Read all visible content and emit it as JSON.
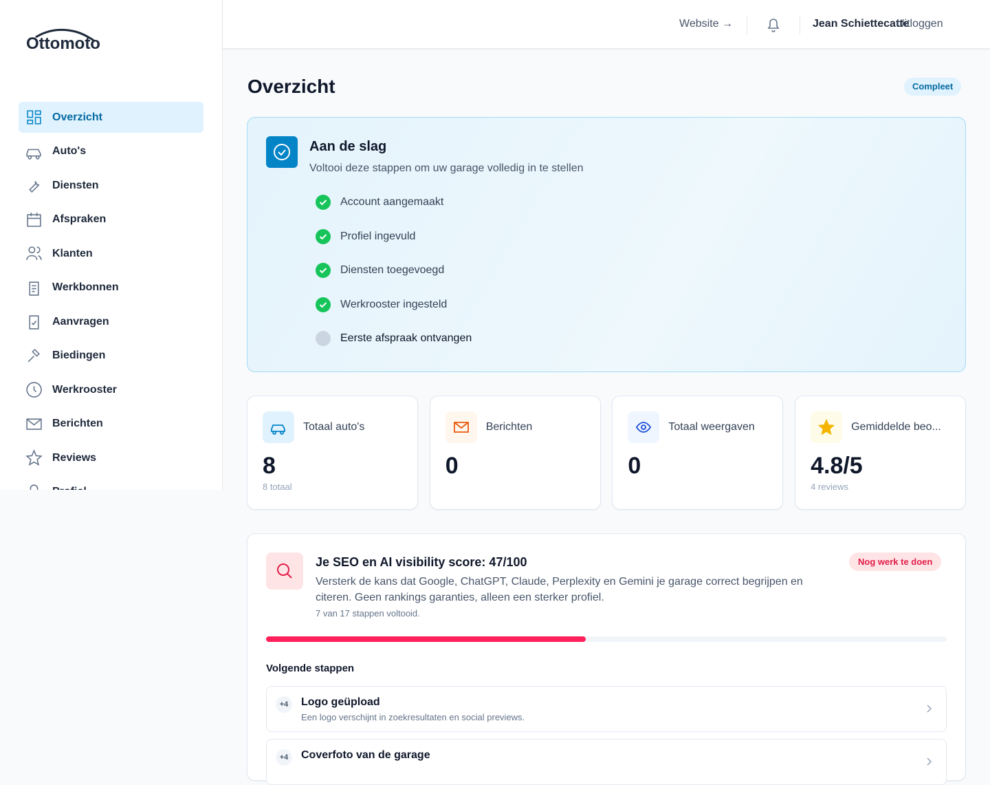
{
  "logo": "Ottomoto",
  "nav": [
    "Overzicht",
    "Auto's",
    "Diensten",
    "Afspraken",
    "Klanten",
    "Werkbonnen",
    "Aanvragen",
    "Biedingen",
    "Werkrooster",
    "Berichten",
    "Reviews",
    "Profiel"
  ],
  "header": {
    "website": "Website →",
    "user": "Jean Schiettecatte",
    "logout": "Uitloggen"
  },
  "page": {
    "title": "Overzicht",
    "badge": "Compleet"
  },
  "onboarding": {
    "title": "Aan de slag",
    "subtitle": "Voltooi deze stappen om uw garage volledig in te stellen",
    "steps": [
      {
        "label": "Account aangemaakt",
        "done": true
      },
      {
        "label": "Profiel ingevuld",
        "done": true
      },
      {
        "label": "Diensten toegevoegd",
        "done": true
      },
      {
        "label": "Werkrooster ingesteld",
        "done": true
      },
      {
        "label": "Eerste afspraak ontvangen",
        "done": false
      }
    ]
  },
  "stats": [
    {
      "label": "Totaal auto's",
      "value": "8",
      "sub": "8 totaal"
    },
    {
      "label": "Berichten",
      "value": "0"
    },
    {
      "label": "Totaal weergaven",
      "value": "0"
    },
    {
      "label": "Gemiddelde beo...",
      "value": "4.8/5",
      "sub": "4 reviews"
    }
  ],
  "seo": {
    "title": "Je SEO en AI visibility score: 47/100",
    "badge": "Nog werk te doen",
    "description": "Versterk de kans dat Google, ChatGPT, Claude, Perplexity en Gemini je garage correct begrijpen en citeren. Geen rankings garanties, alleen een sterker profiel.",
    "progress_text": "7 van 17 stappen voltooid.",
    "progress": {
      "value": 47,
      "max": 100
    },
    "next_title": "Volgende stappen",
    "next": [
      {
        "points": "+4",
        "title": "Logo geüpload",
        "description": "Een logo verschijnt in zoekresultaten en social previews."
      },
      {
        "points": "+4",
        "title": "Coverfoto van de garage"
      }
    ]
  }
}
